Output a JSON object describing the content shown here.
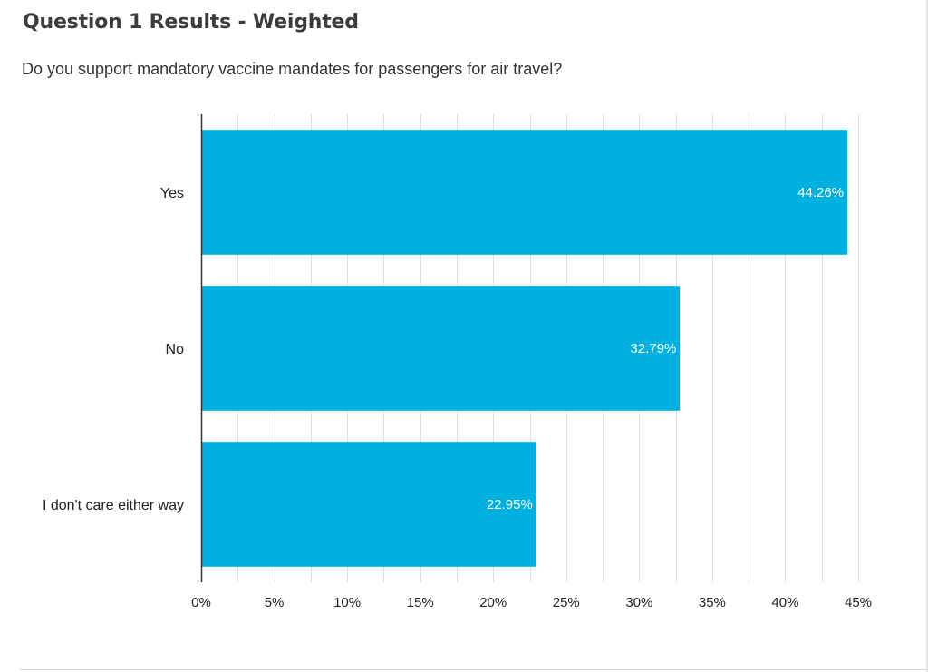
{
  "header": {
    "title": "Question 1 Results - Weighted",
    "subtitle": "Do you support mandatory vaccine mandates for passengers for air travel?"
  },
  "chart_data": {
    "type": "bar",
    "orientation": "horizontal",
    "title": "Question 1 Results - Weighted",
    "subtitle": "Do you support mandatory vaccine mandates for passengers for air travel?",
    "xlabel": "",
    "ylabel": "",
    "categories": [
      "Yes",
      "No",
      "I don't care either way"
    ],
    "values": [
      44.26,
      32.79,
      22.95
    ],
    "value_labels": [
      "44.26%",
      "32.79%",
      "22.95%"
    ],
    "xlim": [
      0,
      45
    ],
    "x_ticks": [
      0,
      5,
      10,
      15,
      20,
      25,
      30,
      35,
      40,
      45
    ],
    "x_tick_labels": [
      "0%",
      "5%",
      "10%",
      "15%",
      "20%",
      "25%",
      "30%",
      "35%",
      "40%",
      "45%"
    ],
    "grid": true,
    "legend": "none",
    "colors": {
      "bar": "#00b0e0",
      "grid": "#e0e0e0",
      "axis": "#333333"
    }
  }
}
